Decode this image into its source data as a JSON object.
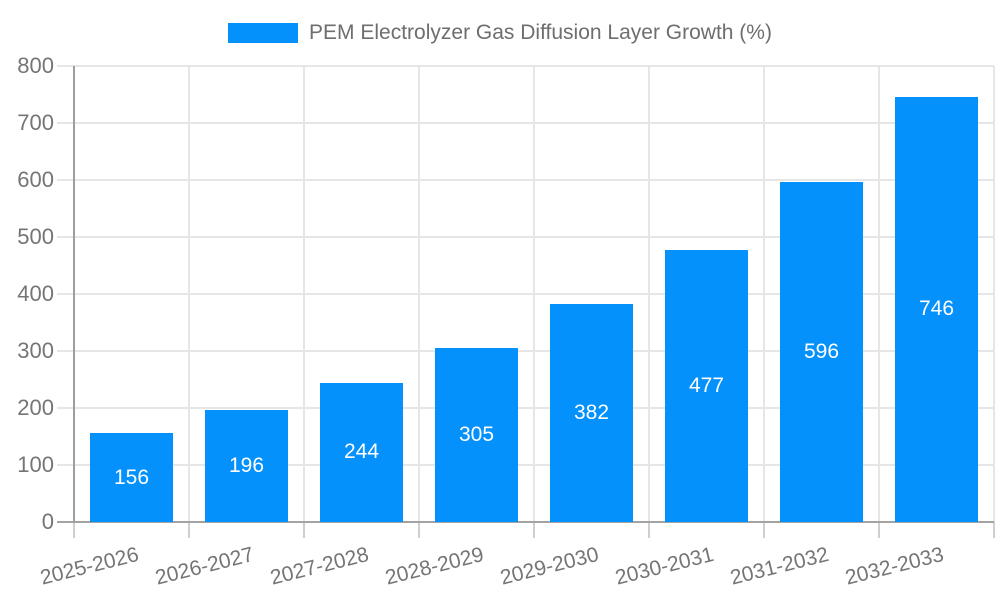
{
  "chart_data": {
    "type": "bar",
    "title": "PEM Electrolyzer Gas Diffusion Layer Growth (%)",
    "categories": [
      "2025-2026",
      "2026-2027",
      "2027-2028",
      "2028-2029",
      "2029-2030",
      "2030-2031",
      "2031-2032",
      "2032-2033"
    ],
    "series": [
      {
        "name": "PEM Electrolyzer Gas Diffusion Layer Growth (%)",
        "color": "#0591fb",
        "values": [
          156,
          196,
          244,
          305,
          382,
          477,
          596,
          746
        ]
      }
    ],
    "value_labels": [
      "156",
      "196",
      "244",
      "305",
      "382",
      "477",
      "596",
      "746"
    ],
    "value_label_position": "center-of-bar",
    "value_label_color": "#ffffff",
    "xlabel": "",
    "ylabel": "",
    "ylim": [
      0,
      800
    ],
    "ytick_interval": 100,
    "ytick_labels": [
      "0",
      "100",
      "200",
      "300",
      "400",
      "500",
      "600",
      "700",
      "800"
    ],
    "grid": true,
    "legend_position": "top-center",
    "colors": {
      "bar": "#0591fb",
      "axis_text": "#757575",
      "legend_text": "#6e6e6e",
      "gridline": "#e6e6e6",
      "axis_line": "#9e9e9e",
      "baseline": "#a3a3a3",
      "tick": "#cfcfcf",
      "background": "#ffffff"
    }
  }
}
